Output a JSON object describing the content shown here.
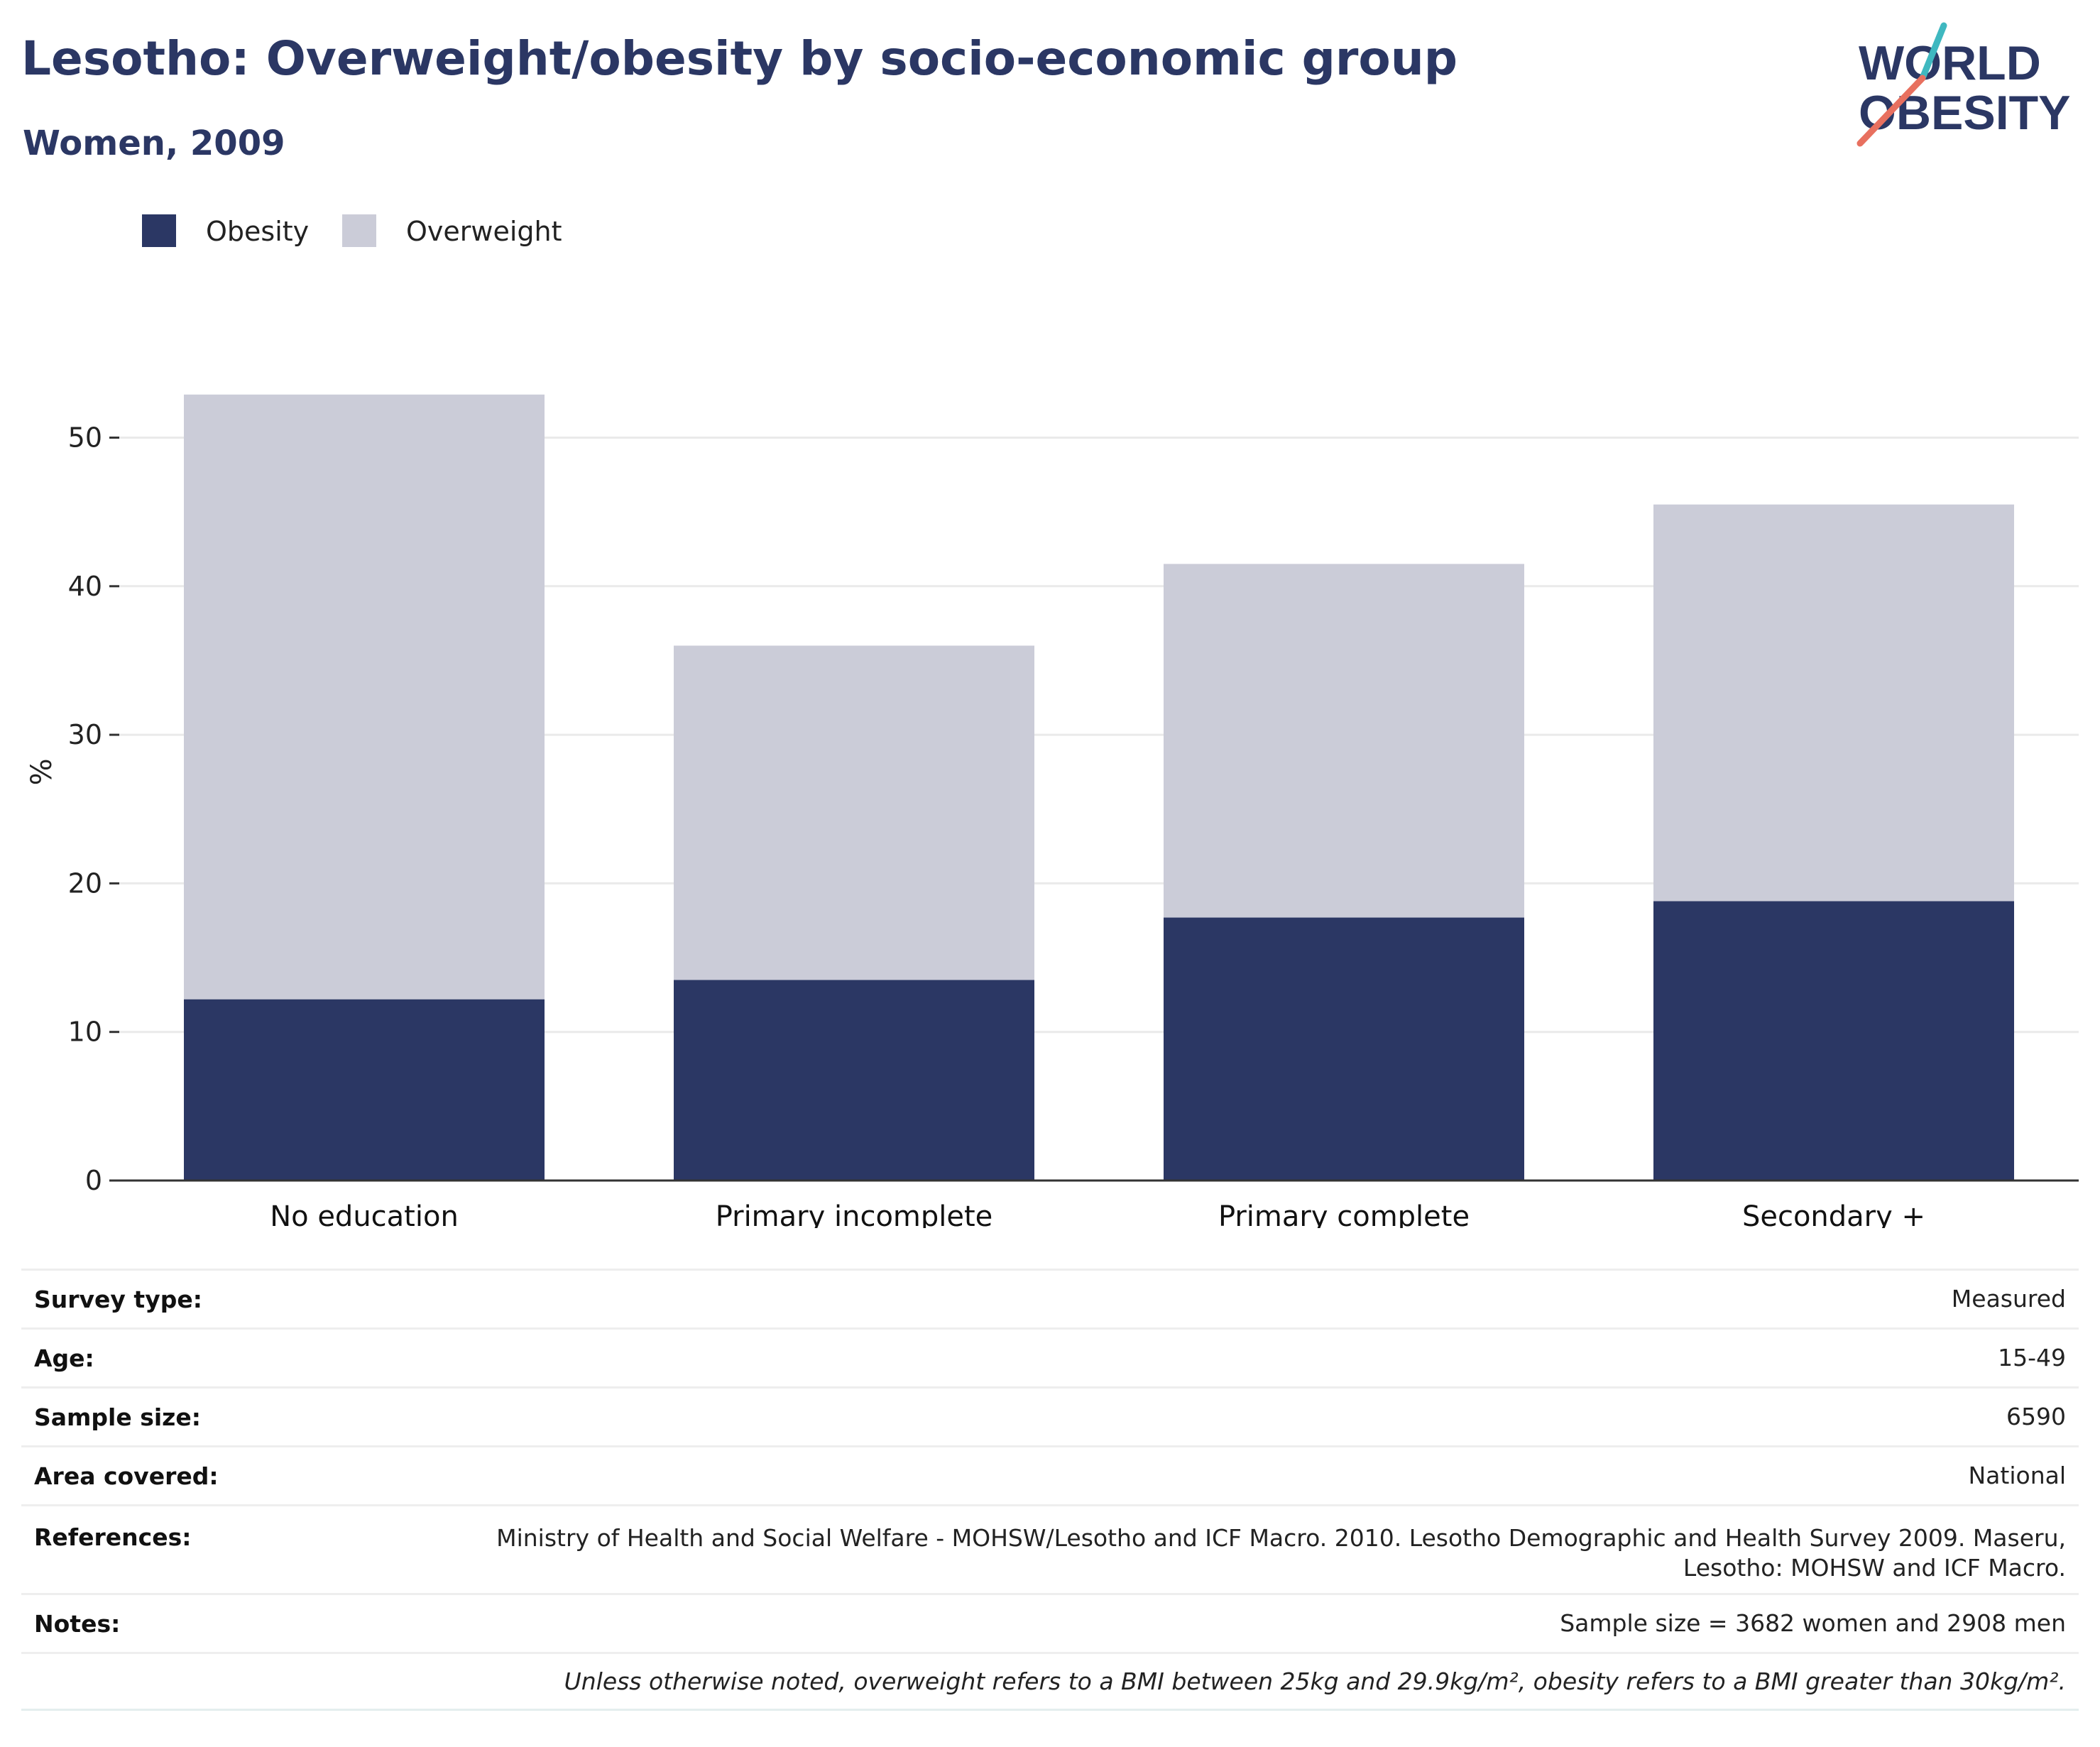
{
  "header": {
    "title": "Lesotho: Overweight/obesity by socio-economic group",
    "subtitle": "Women, 2009"
  },
  "logo": {
    "line1": "WORLD",
    "line2": "OBESITY",
    "accent_teal": "#3fb8c0",
    "accent_coral": "#e8705f",
    "text_color": "#2b3764"
  },
  "chart_data": {
    "type": "bar",
    "stacked": true,
    "categories": [
      "No education",
      "Primary incomplete",
      "Primary complete",
      "Secondary +"
    ],
    "series": [
      {
        "name": "Obesity",
        "values": [
          12.2,
          13.5,
          17.7,
          18.8
        ],
        "color": "#2b3764"
      },
      {
        "name": "Overweight",
        "values": [
          40.7,
          22.5,
          23.8,
          26.7
        ],
        "color": "#cbccd8"
      }
    ],
    "ylabel": "%",
    "ylim": [
      0,
      55
    ],
    "yticks": [
      0,
      10,
      20,
      30,
      40,
      50
    ],
    "grid": true,
    "legend_position": "top-left"
  },
  "info": {
    "survey_type": {
      "label": "Survey type:",
      "value": "Measured"
    },
    "age": {
      "label": "Age:",
      "value": "15-49"
    },
    "sample_size": {
      "label": "Sample size:",
      "value": "6590"
    },
    "area_covered": {
      "label": "Area covered:",
      "value": "National"
    },
    "references": {
      "label": "References:",
      "line1": "Ministry of Health and Social Welfare - MOHSW/Lesotho and ICF Macro. 2010. Lesotho Demographic and Health Survey 2009. Maseru,",
      "line2": "Lesotho: MOHSW and ICF Macro."
    },
    "notes": {
      "label": "Notes:",
      "value": "Sample size = 3682 women and 2908 men"
    },
    "footnote": "Unless otherwise noted, overweight refers to a BMI between 25kg and 29.9kg/m², obesity refers to a BMI greater than 30kg/m²."
  }
}
